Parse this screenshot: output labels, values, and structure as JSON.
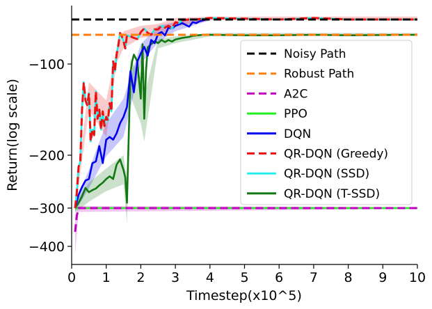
{
  "chart_data": {
    "type": "line",
    "title": "",
    "xlabel": "Timestep(x10^5)",
    "ylabel": "Return(log scale)",
    "xlim": [
      0,
      10
    ],
    "x_ticks": [
      "0",
      "1",
      "2",
      "3",
      "4",
      "5",
      "6",
      "7",
      "8",
      "9",
      "10"
    ],
    "y_ticks": [
      {
        "value": -100,
        "label": "−100"
      },
      {
        "value": -200,
        "label": "−200"
      },
      {
        "value": -300,
        "label": "−300"
      },
      {
        "value": -400,
        "label": "−400"
      }
    ],
    "yscale": "log (visual scale)",
    "legend_position": "center-right",
    "series": [
      {
        "name": "Noisy Path",
        "color": "#000000",
        "style": "dashed",
        "points": [
          [
            0,
            -27
          ],
          [
            10,
            -27
          ]
        ]
      },
      {
        "name": "Robust Path",
        "color": "#ff7f0e",
        "style": "dashed",
        "points": [
          [
            0,
            -44
          ],
          [
            10,
            -44
          ]
        ]
      },
      {
        "name": "A2C",
        "color": "#bf00bf",
        "style": "dashed",
        "points": [
          [
            0.1,
            -362
          ],
          [
            0.15,
            -320
          ],
          [
            0.2,
            -300
          ],
          [
            10,
            -300
          ]
        ],
        "band": {
          "lower": [
            [
              0.1,
              -420
            ],
            [
              0.2,
              -310
            ],
            [
              10,
              -302
            ]
          ],
          "upper": [
            [
              0.1,
              -320
            ],
            [
              0.2,
              -296
            ],
            [
              10,
              -298
            ]
          ]
        }
      },
      {
        "name": "PPO",
        "color": "#22ee22",
        "style": "solid",
        "points": [
          [
            0.1,
            -300
          ],
          [
            10,
            -300
          ]
        ]
      },
      {
        "name": "DQN",
        "color": "#0000ee",
        "style": "solid",
        "points": [
          [
            0.1,
            -300
          ],
          [
            0.2,
            -275
          ],
          [
            0.3,
            -260
          ],
          [
            0.4,
            -248
          ],
          [
            0.5,
            -245
          ],
          [
            0.6,
            -215
          ],
          [
            0.7,
            -212
          ],
          [
            0.8,
            -190
          ],
          [
            0.9,
            -215
          ],
          [
            1.0,
            -183
          ],
          [
            1.1,
            -180
          ],
          [
            1.2,
            -183
          ],
          [
            1.3,
            -176
          ],
          [
            1.4,
            -165
          ],
          [
            1.5,
            -158
          ],
          [
            1.6,
            -147
          ],
          [
            1.7,
            -108
          ],
          [
            1.8,
            -131
          ],
          [
            1.9,
            -95
          ],
          [
            2.0,
            -80
          ],
          [
            2.1,
            -67
          ],
          [
            2.2,
            -84
          ],
          [
            2.3,
            -54
          ],
          [
            2.4,
            -60
          ],
          [
            2.5,
            -43
          ],
          [
            2.6,
            -41
          ],
          [
            2.7,
            -45
          ],
          [
            2.8,
            -36
          ],
          [
            2.9,
            -37
          ],
          [
            3.0,
            -34
          ],
          [
            3.2,
            -31
          ],
          [
            3.4,
            -35
          ],
          [
            3.5,
            -30
          ],
          [
            3.6,
            -31
          ],
          [
            3.7,
            -29
          ],
          [
            3.8,
            -28
          ],
          [
            3.9,
            -27
          ],
          [
            4.0,
            -27
          ]
        ],
        "band": {
          "lower": [
            [
              0.1,
              -310
            ],
            [
              0.5,
              -262
            ],
            [
              1.0,
              -202
            ],
            [
              1.5,
              -180
            ],
            [
              2.0,
              -100
            ],
            [
              2.5,
              -58
            ],
            [
              3.0,
              -40
            ],
            [
              3.5,
              -34
            ],
            [
              4.0,
              -28
            ]
          ],
          "upper": [
            [
              0.1,
              -290
            ],
            [
              0.5,
              -228
            ],
            [
              1.0,
              -165
            ],
            [
              1.5,
              -138
            ],
            [
              2.0,
              -62
            ],
            [
              2.5,
              -34
            ],
            [
              3.0,
              -30
            ],
            [
              3.5,
              -28
            ],
            [
              4.0,
              -26
            ]
          ]
        }
      },
      {
        "name": "QR-DQN (Greedy)",
        "color": "#ee1111",
        "style": "dashed",
        "points": [
          [
            0.1,
            -300
          ],
          [
            0.15,
            -270
          ],
          [
            0.2,
            -222
          ],
          [
            0.25,
            -212
          ],
          [
            0.3,
            -150
          ],
          [
            0.35,
            -120
          ],
          [
            0.4,
            -140
          ],
          [
            0.45,
            -145
          ],
          [
            0.5,
            -132
          ],
          [
            0.55,
            -185
          ],
          [
            0.6,
            -172
          ],
          [
            0.65,
            -178
          ],
          [
            0.7,
            -130
          ],
          [
            0.75,
            -160
          ],
          [
            0.8,
            -150
          ],
          [
            0.85,
            -172
          ],
          [
            0.9,
            -152
          ],
          [
            0.95,
            -168
          ],
          [
            1.0,
            -158
          ],
          [
            1.05,
            -162
          ],
          [
            1.1,
            -143
          ],
          [
            1.15,
            -152
          ],
          [
            1.2,
            -95
          ],
          [
            1.25,
            -108
          ],
          [
            1.3,
            -82
          ],
          [
            1.35,
            -64
          ],
          [
            1.4,
            -42
          ],
          [
            1.45,
            -47
          ],
          [
            1.5,
            -56
          ],
          [
            1.55,
            -70
          ],
          [
            1.6,
            -45
          ],
          [
            1.7,
            -47
          ],
          [
            1.8,
            -50
          ],
          [
            1.9,
            -52
          ],
          [
            2.0,
            -41
          ],
          [
            2.1,
            -37
          ],
          [
            2.2,
            -42
          ],
          [
            2.3,
            -44
          ],
          [
            2.4,
            -38
          ],
          [
            2.5,
            -38
          ],
          [
            2.6,
            -34
          ],
          [
            2.7,
            -36
          ],
          [
            2.8,
            -34
          ],
          [
            2.9,
            -37
          ],
          [
            3.0,
            -30
          ],
          [
            3.1,
            -31
          ],
          [
            3.2,
            -28
          ],
          [
            3.4,
            -27
          ],
          [
            3.6,
            -27
          ],
          [
            4.0,
            -26
          ],
          [
            6.0,
            -27
          ],
          [
            7.0,
            -26
          ],
          [
            8.0,
            -27
          ],
          [
            10.0,
            -27
          ]
        ],
        "band": {
          "lower": [
            [
              0.1,
              -310
            ],
            [
              0.5,
              -150
            ],
            [
              1.0,
              -180
            ],
            [
              1.3,
              -98
            ],
            [
              1.5,
              -70
            ],
            [
              2.0,
              -50
            ],
            [
              2.5,
              -45
            ],
            [
              3.0,
              -35
            ],
            [
              4.0,
              -28
            ],
            [
              10.0,
              -28
            ]
          ],
          "upper": [
            [
              0.1,
              -290
            ],
            [
              0.5,
              -120
            ],
            [
              1.0,
              -140
            ],
            [
              1.3,
              -70
            ],
            [
              1.5,
              -40
            ],
            [
              2.0,
              -34
            ],
            [
              2.5,
              -32
            ],
            [
              3.0,
              -26
            ],
            [
              4.0,
              -25
            ],
            [
              10.0,
              -25
            ]
          ]
        }
      },
      {
        "name": "QR-DQN (SSD)",
        "color": "#22eeee",
        "style": "solid",
        "points": [
          [
            0.1,
            -300
          ],
          [
            0.15,
            -270
          ],
          [
            0.2,
            -222
          ],
          [
            0.25,
            -212
          ],
          [
            0.3,
            -150
          ],
          [
            0.35,
            -120
          ],
          [
            0.4,
            -140
          ],
          [
            0.45,
            -145
          ],
          [
            0.5,
            -132
          ],
          [
            0.55,
            -185
          ],
          [
            0.6,
            -172
          ],
          [
            0.65,
            -178
          ],
          [
            0.7,
            -130
          ],
          [
            0.75,
            -160
          ],
          [
            0.8,
            -150
          ],
          [
            0.85,
            -172
          ],
          [
            0.9,
            -152
          ],
          [
            0.95,
            -168
          ],
          [
            1.0,
            -158
          ],
          [
            1.05,
            -162
          ],
          [
            1.1,
            -143
          ],
          [
            1.15,
            -152
          ],
          [
            1.2,
            -95
          ],
          [
            1.25,
            -108
          ],
          [
            1.3,
            -82
          ],
          [
            1.35,
            -64
          ],
          [
            1.4,
            -42
          ],
          [
            1.45,
            -47
          ],
          [
            1.5,
            -56
          ],
          [
            1.55,
            -70
          ],
          [
            1.6,
            -45
          ],
          [
            1.7,
            -47
          ],
          [
            1.8,
            -50
          ],
          [
            1.9,
            -52
          ],
          [
            2.0,
            -41
          ],
          [
            2.1,
            -37
          ],
          [
            2.2,
            -42
          ],
          [
            2.3,
            -44
          ],
          [
            2.4,
            -38
          ],
          [
            2.5,
            -38
          ],
          [
            2.6,
            -34
          ],
          [
            2.7,
            -36
          ],
          [
            2.8,
            -34
          ],
          [
            2.9,
            -37
          ],
          [
            3.0,
            -30
          ],
          [
            3.1,
            -31
          ],
          [
            3.2,
            -28
          ],
          [
            3.4,
            -27
          ],
          [
            3.6,
            -27
          ],
          [
            4.0,
            -26
          ],
          [
            6.0,
            -27
          ],
          [
            7.0,
            -26
          ],
          [
            8.0,
            -27
          ],
          [
            10.0,
            -27
          ]
        ]
      },
      {
        "name": "QR-DQN (T-SSD)",
        "color": "#117711",
        "style": "solid",
        "points": [
          [
            0.1,
            -300
          ],
          [
            0.2,
            -290
          ],
          [
            0.3,
            -278
          ],
          [
            0.4,
            -262
          ],
          [
            0.5,
            -270
          ],
          [
            0.6,
            -266
          ],
          [
            0.7,
            -263
          ],
          [
            0.8,
            -257
          ],
          [
            0.9,
            -252
          ],
          [
            1.0,
            -245
          ],
          [
            1.1,
            -240
          ],
          [
            1.2,
            -245
          ],
          [
            1.3,
            -218
          ],
          [
            1.4,
            -208
          ],
          [
            1.5,
            -228
          ],
          [
            1.55,
            -242
          ],
          [
            1.6,
            -290
          ],
          [
            1.65,
            -180
          ],
          [
            1.7,
            -110
          ],
          [
            1.75,
            -95
          ],
          [
            1.8,
            -82
          ],
          [
            1.9,
            -95
          ],
          [
            2.0,
            -138
          ],
          [
            2.05,
            -62
          ],
          [
            2.1,
            -160
          ],
          [
            2.15,
            -108
          ],
          [
            2.2,
            -68
          ],
          [
            2.3,
            -62
          ],
          [
            2.4,
            -56
          ],
          [
            2.5,
            -60
          ],
          [
            2.6,
            -54
          ],
          [
            2.7,
            -58
          ],
          [
            2.8,
            -54
          ],
          [
            2.9,
            -57
          ],
          [
            3.0,
            -53
          ],
          [
            3.2,
            -50
          ],
          [
            3.4,
            -48
          ],
          [
            3.5,
            -46
          ],
          [
            3.8,
            -44
          ],
          [
            4.0,
            -44
          ],
          [
            5.0,
            -45
          ],
          [
            6.0,
            -45
          ],
          [
            7.0,
            -44
          ],
          [
            8.0,
            -45
          ],
          [
            10.0,
            -44
          ]
        ],
        "band": {
          "lower": [
            [
              0.1,
              -312
            ],
            [
              0.5,
              -288
            ],
            [
              1.0,
              -268
            ],
            [
              1.5,
              -255
            ],
            [
              1.6,
              -340
            ],
            [
              1.7,
              -135
            ],
            [
              2.0,
              -165
            ],
            [
              2.1,
              -185
            ],
            [
              2.5,
              -70
            ],
            [
              3.0,
              -60
            ],
            [
              4.0,
              -47
            ],
            [
              10.0,
              -46
            ]
          ],
          "upper": [
            [
              0.1,
              -290
            ],
            [
              0.5,
              -252
            ],
            [
              1.0,
              -225
            ],
            [
              1.5,
              -200
            ],
            [
              1.6,
              -245
            ],
            [
              1.7,
              -90
            ],
            [
              2.0,
              -115
            ],
            [
              2.1,
              -135
            ],
            [
              2.5,
              -52
            ],
            [
              3.0,
              -47
            ],
            [
              4.0,
              -42
            ],
            [
              10.0,
              -42
            ]
          ]
        }
      }
    ]
  }
}
